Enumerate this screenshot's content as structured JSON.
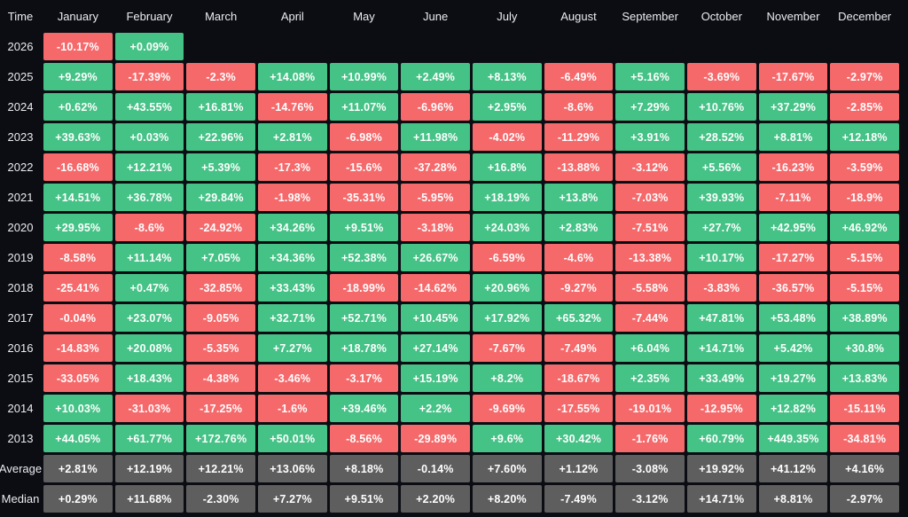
{
  "colors": {
    "background": "#0b0d13",
    "positive": "#45c286",
    "negative": "#f5696b",
    "summary": "#5e5e5e",
    "header_text": "#eaecef",
    "cell_text": "#ffffff"
  },
  "table": {
    "corner_label": "Time",
    "months": [
      "January",
      "February",
      "March",
      "April",
      "May",
      "June",
      "July",
      "August",
      "September",
      "October",
      "November",
      "December"
    ],
    "rows": [
      {
        "label": "2026",
        "type": "year",
        "cells": [
          "-10.17%",
          "+0.09%",
          null,
          null,
          null,
          null,
          null,
          null,
          null,
          null,
          null,
          null
        ]
      },
      {
        "label": "2025",
        "type": "year",
        "cells": [
          "+9.29%",
          "-17.39%",
          "-2.3%",
          "+14.08%",
          "+10.99%",
          "+2.49%",
          "+8.13%",
          "-6.49%",
          "+5.16%",
          "-3.69%",
          "-17.67%",
          "-2.97%"
        ]
      },
      {
        "label": "2024",
        "type": "year",
        "cells": [
          "+0.62%",
          "+43.55%",
          "+16.81%",
          "-14.76%",
          "+11.07%",
          "-6.96%",
          "+2.95%",
          "-8.6%",
          "+7.29%",
          "+10.76%",
          "+37.29%",
          "-2.85%"
        ]
      },
      {
        "label": "2023",
        "type": "year",
        "cells": [
          "+39.63%",
          "+0.03%",
          "+22.96%",
          "+2.81%",
          "-6.98%",
          "+11.98%",
          "-4.02%",
          "-11.29%",
          "+3.91%",
          "+28.52%",
          "+8.81%",
          "+12.18%"
        ]
      },
      {
        "label": "2022",
        "type": "year",
        "cells": [
          "-16.68%",
          "+12.21%",
          "+5.39%",
          "-17.3%",
          "-15.6%",
          "-37.28%",
          "+16.8%",
          "-13.88%",
          "-3.12%",
          "+5.56%",
          "-16.23%",
          "-3.59%"
        ]
      },
      {
        "label": "2021",
        "type": "year",
        "cells": [
          "+14.51%",
          "+36.78%",
          "+29.84%",
          "-1.98%",
          "-35.31%",
          "-5.95%",
          "+18.19%",
          "+13.8%",
          "-7.03%",
          "+39.93%",
          "-7.11%",
          "-18.9%"
        ]
      },
      {
        "label": "2020",
        "type": "year",
        "cells": [
          "+29.95%",
          "-8.6%",
          "-24.92%",
          "+34.26%",
          "+9.51%",
          "-3.18%",
          "+24.03%",
          "+2.83%",
          "-7.51%",
          "+27.7%",
          "+42.95%",
          "+46.92%"
        ]
      },
      {
        "label": "2019",
        "type": "year",
        "cells": [
          "-8.58%",
          "+11.14%",
          "+7.05%",
          "+34.36%",
          "+52.38%",
          "+26.67%",
          "-6.59%",
          "-4.6%",
          "-13.38%",
          "+10.17%",
          "-17.27%",
          "-5.15%"
        ]
      },
      {
        "label": "2018",
        "type": "year",
        "cells": [
          "-25.41%",
          "+0.47%",
          "-32.85%",
          "+33.43%",
          "-18.99%",
          "-14.62%",
          "+20.96%",
          "-9.27%",
          "-5.58%",
          "-3.83%",
          "-36.57%",
          "-5.15%"
        ]
      },
      {
        "label": "2017",
        "type": "year",
        "cells": [
          "-0.04%",
          "+23.07%",
          "-9.05%",
          "+32.71%",
          "+52.71%",
          "+10.45%",
          "+17.92%",
          "+65.32%",
          "-7.44%",
          "+47.81%",
          "+53.48%",
          "+38.89%"
        ]
      },
      {
        "label": "2016",
        "type": "year",
        "cells": [
          "-14.83%",
          "+20.08%",
          "-5.35%",
          "+7.27%",
          "+18.78%",
          "+27.14%",
          "-7.67%",
          "-7.49%",
          "+6.04%",
          "+14.71%",
          "+5.42%",
          "+30.8%"
        ]
      },
      {
        "label": "2015",
        "type": "year",
        "cells": [
          "-33.05%",
          "+18.43%",
          "-4.38%",
          "-3.46%",
          "-3.17%",
          "+15.19%",
          "+8.2%",
          "-18.67%",
          "+2.35%",
          "+33.49%",
          "+19.27%",
          "+13.83%"
        ]
      },
      {
        "label": "2014",
        "type": "year",
        "cells": [
          "+10.03%",
          "-31.03%",
          "-17.25%",
          "-1.6%",
          "+39.46%",
          "+2.2%",
          "-9.69%",
          "-17.55%",
          "-19.01%",
          "-12.95%",
          "+12.82%",
          "-15.11%"
        ]
      },
      {
        "label": "2013",
        "type": "year",
        "cells": [
          "+44.05%",
          "+61.77%",
          "+172.76%",
          "+50.01%",
          "-8.56%",
          "-29.89%",
          "+9.6%",
          "+30.42%",
          "-1.76%",
          "+60.79%",
          "+449.35%",
          "-34.81%"
        ]
      },
      {
        "label": "Average",
        "type": "summary",
        "cells": [
          "+2.81%",
          "+12.19%",
          "+12.21%",
          "+13.06%",
          "+8.18%",
          "-0.14%",
          "+7.60%",
          "+1.12%",
          "-3.08%",
          "+19.92%",
          "+41.12%",
          "+4.16%"
        ]
      },
      {
        "label": "Median",
        "type": "summary",
        "cells": [
          "+0.29%",
          "+11.68%",
          "-2.30%",
          "+7.27%",
          "+9.51%",
          "+2.20%",
          "+8.20%",
          "-7.49%",
          "-3.12%",
          "+14.71%",
          "+8.81%",
          "-2.97%"
        ]
      }
    ]
  },
  "chart_data": {
    "type": "heatmap",
    "x_categories": [
      "January",
      "February",
      "March",
      "April",
      "May",
      "June",
      "July",
      "August",
      "September",
      "October",
      "November",
      "December"
    ],
    "y_categories": [
      "2026",
      "2025",
      "2024",
      "2023",
      "2022",
      "2021",
      "2020",
      "2019",
      "2018",
      "2017",
      "2016",
      "2015",
      "2014",
      "2013",
      "Average",
      "Median"
    ],
    "values_percent": [
      [
        -10.17,
        0.09,
        null,
        null,
        null,
        null,
        null,
        null,
        null,
        null,
        null,
        null
      ],
      [
        9.29,
        -17.39,
        -2.3,
        14.08,
        10.99,
        2.49,
        8.13,
        -6.49,
        5.16,
        -3.69,
        -17.67,
        -2.97
      ],
      [
        0.62,
        43.55,
        16.81,
        -14.76,
        11.07,
        -6.96,
        2.95,
        -8.6,
        7.29,
        10.76,
        37.29,
        -2.85
      ],
      [
        39.63,
        0.03,
        22.96,
        2.81,
        -6.98,
        11.98,
        -4.02,
        -11.29,
        3.91,
        28.52,
        8.81,
        12.18
      ],
      [
        -16.68,
        12.21,
        5.39,
        -17.3,
        -15.6,
        -37.28,
        16.8,
        -13.88,
        -3.12,
        5.56,
        -16.23,
        -3.59
      ],
      [
        14.51,
        36.78,
        29.84,
        -1.98,
        -35.31,
        -5.95,
        18.19,
        13.8,
        -7.03,
        39.93,
        -7.11,
        -18.9
      ],
      [
        29.95,
        -8.6,
        -24.92,
        34.26,
        9.51,
        -3.18,
        24.03,
        2.83,
        -7.51,
        27.7,
        42.95,
        46.92
      ],
      [
        -8.58,
        11.14,
        7.05,
        34.36,
        52.38,
        26.67,
        -6.59,
        -4.6,
        -13.38,
        10.17,
        -17.27,
        -5.15
      ],
      [
        -25.41,
        0.47,
        -32.85,
        33.43,
        -18.99,
        -14.62,
        20.96,
        -9.27,
        -5.58,
        -3.83,
        -36.57,
        -5.15
      ],
      [
        -0.04,
        23.07,
        -9.05,
        32.71,
        52.71,
        10.45,
        17.92,
        65.32,
        -7.44,
        47.81,
        53.48,
        38.89
      ],
      [
        -14.83,
        20.08,
        -5.35,
        7.27,
        18.78,
        27.14,
        -7.67,
        -7.49,
        6.04,
        14.71,
        5.42,
        30.8
      ],
      [
        -33.05,
        18.43,
        -4.38,
        -3.46,
        -3.17,
        15.19,
        8.2,
        -18.67,
        2.35,
        33.49,
        19.27,
        13.83
      ],
      [
        10.03,
        -31.03,
        -17.25,
        -1.6,
        39.46,
        2.2,
        -9.69,
        -17.55,
        -19.01,
        -12.95,
        12.82,
        -15.11
      ],
      [
        44.05,
        61.77,
        172.76,
        50.01,
        -8.56,
        -29.89,
        9.6,
        30.42,
        -1.76,
        60.79,
        449.35,
        -34.81
      ],
      [
        2.81,
        12.19,
        12.21,
        13.06,
        8.18,
        -0.14,
        7.6,
        1.12,
        -3.08,
        19.92,
        41.12,
        4.16
      ],
      [
        0.29,
        11.68,
        -2.3,
        7.27,
        9.51,
        2.2,
        8.2,
        -7.49,
        -3.12,
        14.71,
        8.81,
        -2.97
      ]
    ],
    "color_rule": "positive=green, negative=red, summary rows=gray",
    "legend": "none",
    "grid": "dark gaps between cells"
  }
}
